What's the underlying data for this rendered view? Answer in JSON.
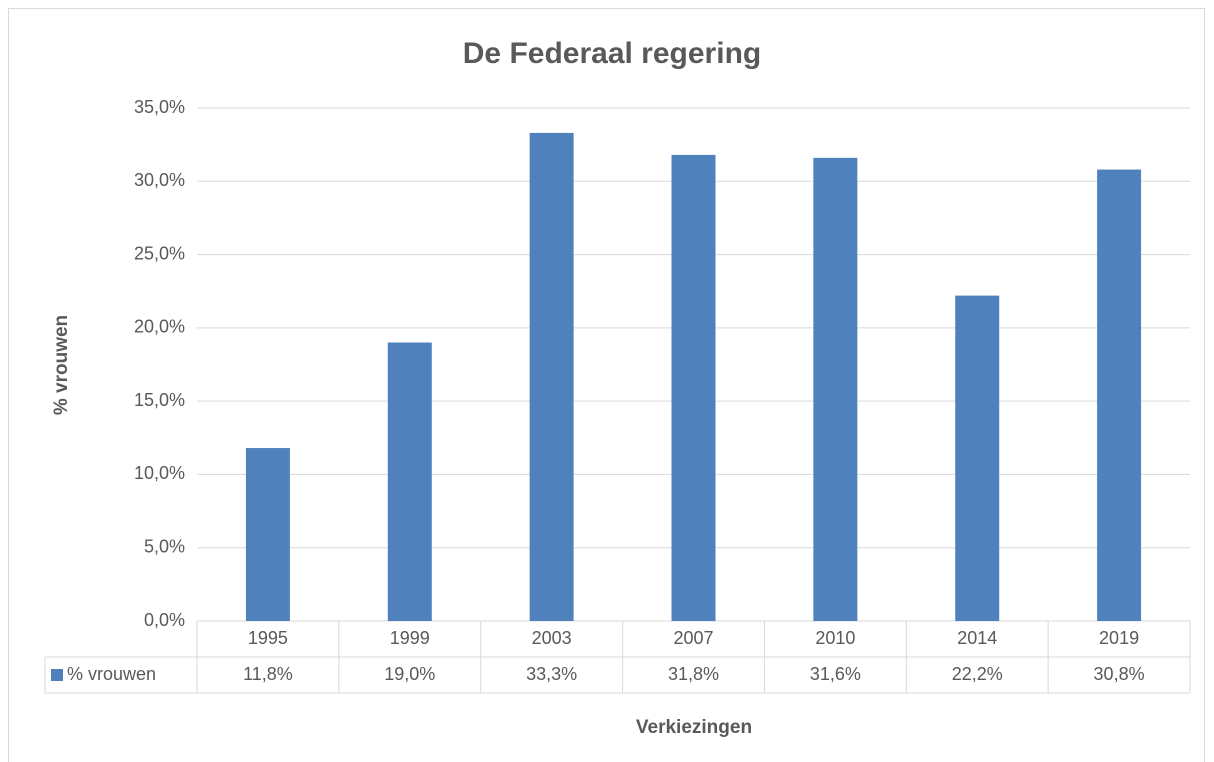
{
  "chart_data": {
    "type": "bar",
    "title": "De Federaal regering",
    "x_label": "Verkiezingen",
    "y_label": "% vrouwen",
    "categories": [
      "1995",
      "1999",
      "2003",
      "2007",
      "2010",
      "2014",
      "2019"
    ],
    "series": [
      {
        "name": "% vrouwen",
        "color": "#4f81bd",
        "values": [
          11.8,
          19.0,
          33.3,
          31.8,
          31.6,
          22.2,
          30.8
        ],
        "value_labels": [
          "11,8%",
          "19,0%",
          "33,3%",
          "31,8%",
          "31,6%",
          "22,2%",
          "30,8%"
        ]
      }
    ],
    "ylim": [
      0,
      35
    ],
    "yticks": [
      {
        "value": 0,
        "label": "0,0%"
      },
      {
        "value": 5,
        "label": "5,0%"
      },
      {
        "value": 10,
        "label": "10,0%"
      },
      {
        "value": 15,
        "label": "15,0%"
      },
      {
        "value": 20,
        "label": "20,0%"
      },
      {
        "value": 25,
        "label": "25,0%"
      },
      {
        "value": 30,
        "label": "30,0%"
      },
      {
        "value": 35,
        "label": "35,0%"
      }
    ],
    "grid": true
  }
}
